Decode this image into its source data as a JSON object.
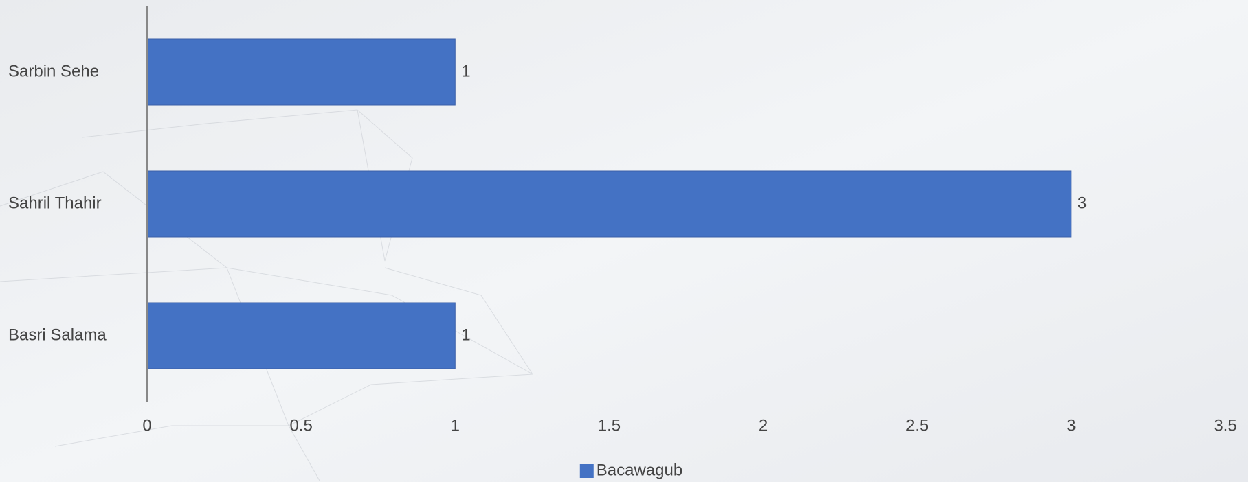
{
  "chart_data": {
    "type": "hbar",
    "categories": [
      "Sarbin Sehe",
      "Sahril Thahir",
      "Basri Salama"
    ],
    "series": [
      {
        "name": "Bacawagub",
        "color": "#4472c4",
        "values": [
          1,
          3,
          1
        ]
      }
    ],
    "xlim": [
      0,
      3.5
    ],
    "xticks": [
      0,
      0.5,
      1,
      1.5,
      2,
      2.5,
      3,
      3.5
    ],
    "grid": false,
    "legend": "bottom"
  }
}
